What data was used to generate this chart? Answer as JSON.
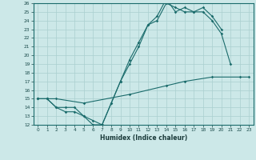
{
  "xlabel": "Humidex (Indice chaleur)",
  "bg_color": "#cce8e8",
  "grid_color": "#aacfcf",
  "line_color": "#1a6b6b",
  "xlim": [
    -0.5,
    23.5
  ],
  "ylim": [
    12,
    26
  ],
  "xticks": [
    0,
    1,
    2,
    3,
    4,
    5,
    6,
    7,
    8,
    9,
    10,
    11,
    12,
    13,
    14,
    15,
    16,
    17,
    18,
    19,
    20,
    21,
    22,
    23
  ],
  "yticks": [
    12,
    13,
    14,
    15,
    16,
    17,
    18,
    19,
    20,
    21,
    22,
    23,
    24,
    25,
    26
  ],
  "line1_x": [
    0,
    1,
    2,
    3,
    4,
    5,
    6,
    7,
    8,
    9,
    10,
    11,
    12,
    13,
    14,
    15,
    16,
    17,
    18,
    19,
    20,
    21
  ],
  "line1_y": [
    15,
    15,
    14,
    14,
    14,
    13,
    12,
    12,
    14.5,
    17,
    19,
    21,
    23.5,
    24,
    26,
    25.5,
    25,
    25,
    25,
    24,
    22.5,
    19
  ],
  "line2_x": [
    0,
    1,
    2,
    3,
    4,
    5,
    6,
    7,
    8,
    9,
    10,
    11,
    12,
    13,
    14,
    15,
    16,
    17,
    18,
    19,
    20
  ],
  "line2_y": [
    15,
    15,
    14,
    13.5,
    13.5,
    13,
    12.5,
    12,
    14.5,
    17,
    19.5,
    21.5,
    23.5,
    24.5,
    26.5,
    25,
    25.5,
    25,
    25.5,
    24.5,
    23
  ],
  "line3_x": [
    0,
    1,
    2,
    5,
    10,
    14,
    16,
    19,
    22,
    23
  ],
  "line3_y": [
    15,
    15,
    15,
    14.5,
    15.5,
    16.5,
    17,
    17.5,
    17.5,
    17.5
  ]
}
